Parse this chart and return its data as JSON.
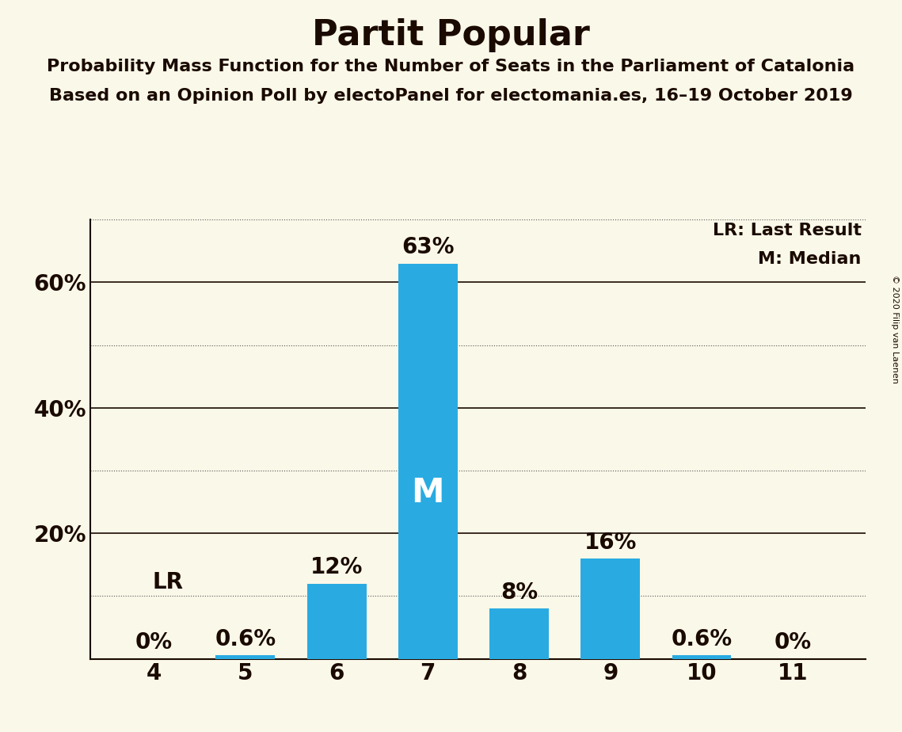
{
  "title": "Partit Popular",
  "subtitle1": "Probability Mass Function for the Number of Seats in the Parliament of Catalonia",
  "subtitle2": "Based on an Opinion Poll by electoPanel for electomania.es, 16–19 October 2019",
  "copyright": "© 2020 Filip van Laenen",
  "categories": [
    4,
    5,
    6,
    7,
    8,
    9,
    10,
    11
  ],
  "values": [
    0.0,
    0.6,
    12.0,
    63.0,
    8.0,
    16.0,
    0.6,
    0.0
  ],
  "bar_labels": [
    "0%",
    "0.6%",
    "12%",
    "63%",
    "8%",
    "16%",
    "0.6%",
    "0%"
  ],
  "bar_color": "#29abe2",
  "median_bar": 7,
  "lr_bar": 4,
  "background_color": "#faf8e8",
  "title_color": "#1a0a00",
  "bar_label_color": "#1a0a00",
  "median_label_color": "#ffffff",
  "ylim": [
    0,
    70
  ],
  "solid_gridlines": [
    20,
    40,
    60
  ],
  "dotted_gridlines": [
    10,
    30,
    50,
    70
  ],
  "legend_text": [
    "LR: Last Result",
    "M: Median"
  ]
}
